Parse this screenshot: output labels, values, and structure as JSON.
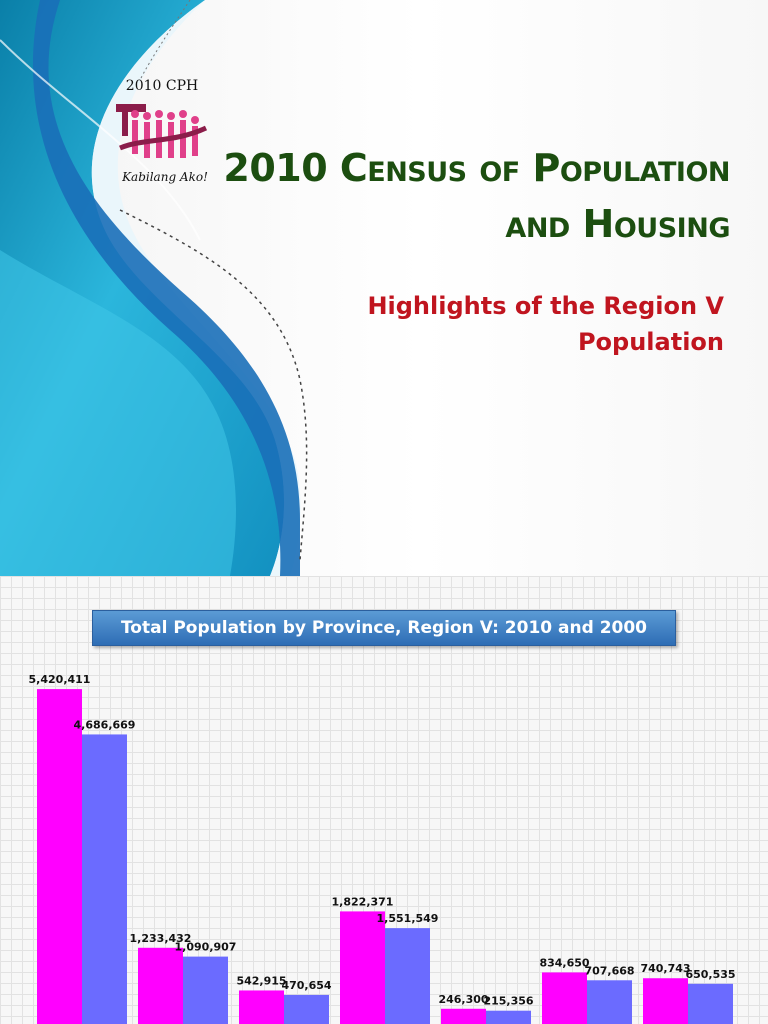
{
  "slide1": {
    "logo_text": "2010 CPH",
    "logo_tagline": "Kabilang Ako!",
    "title_line1": "2010 Census of Population",
    "title_line2": "and Housing",
    "subtitle_line1": "Highlights of the Region V",
    "subtitle_line2": "Population",
    "colors": {
      "title": "#1c4e10",
      "subtitle": "#c0151f",
      "swoosh": "#1a9fd0"
    }
  },
  "slide2": {
    "chart_title": "Total Population by Province, Region V: 2010 and 2000"
  },
  "chart_data": {
    "type": "bar",
    "title": "Total Population by Province, Region V: 2010 and 2000",
    "xlabel": "",
    "ylabel": "",
    "ylim": [
      0,
      5600000
    ],
    "grid": true,
    "series": [
      {
        "color": "#ff00ff",
        "values": [
          5420411,
          1233432,
          542915,
          1822371,
          246300,
          834650,
          740743
        ]
      },
      {
        "color": "#6b6bff",
        "values": [
          4686669,
          1090907,
          470654,
          1551549,
          215356,
          707668,
          650535
        ]
      }
    ],
    "data_labels": [
      [
        "5,420,411",
        "1,233,432",
        "542,915",
        "1,822,371",
        "246,300",
        "834,650",
        "740,743"
      ],
      [
        "4,686,669",
        "1,090,907",
        "470,654",
        "1,551,549",
        "215,356",
        "707,668",
        "650,535"
      ]
    ]
  }
}
